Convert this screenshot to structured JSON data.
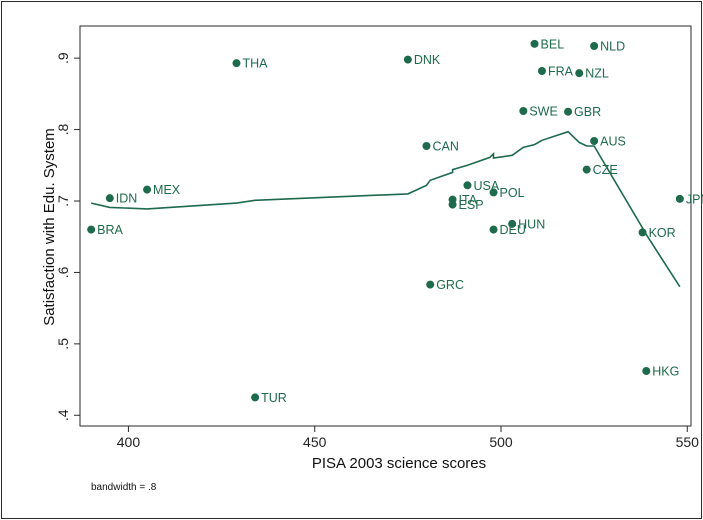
{
  "chart_data": {
    "type": "scatter",
    "xlabel": "PISA 2003 science scores",
    "ylabel": "Satisfaction with Edu. System",
    "note": "bandwidth = .8",
    "xlim": [
      387,
      551
    ],
    "ylim": [
      0.385,
      0.945
    ],
    "xticks": [
      400,
      450,
      500,
      550
    ],
    "yticks": [
      0.4,
      0.5,
      0.6,
      0.7,
      0.8,
      0.9
    ],
    "ytick_labels": [
      ".4",
      ".5",
      ".6",
      ".7",
      ".8",
      ".9"
    ],
    "marker_color": "#1e6a4d",
    "line_color": "#1e6a4d",
    "grid": false,
    "points": [
      {
        "label": "BRA",
        "x": 390,
        "y": 0.66
      },
      {
        "label": "IDN",
        "x": 395,
        "y": 0.704
      },
      {
        "label": "MEX",
        "x": 405,
        "y": 0.716
      },
      {
        "label": "THA",
        "x": 429,
        "y": 0.893
      },
      {
        "label": "TUR",
        "x": 434,
        "y": 0.425
      },
      {
        "label": "DNK",
        "x": 475,
        "y": 0.898
      },
      {
        "label": "CAN",
        "x": 480,
        "y": 0.777
      },
      {
        "label": "GRC",
        "x": 481,
        "y": 0.583
      },
      {
        "label": "ITA",
        "x": 487,
        "y": 0.702
      },
      {
        "label": "ESP",
        "x": 487,
        "y": 0.695
      },
      {
        "label": "USA",
        "x": 491,
        "y": 0.722
      },
      {
        "label": "POL",
        "x": 498,
        "y": 0.712
      },
      {
        "label": "DEU",
        "x": 498,
        "y": 0.66
      },
      {
        "label": "HUN",
        "x": 503,
        "y": 0.668
      },
      {
        "label": "SWE",
        "x": 506,
        "y": 0.826
      },
      {
        "label": "BEL",
        "x": 509,
        "y": 0.92
      },
      {
        "label": "FRA",
        "x": 511,
        "y": 0.882
      },
      {
        "label": "GBR",
        "x": 518,
        "y": 0.825
      },
      {
        "label": "NZL",
        "x": 521,
        "y": 0.879
      },
      {
        "label": "CZE",
        "x": 523,
        "y": 0.744
      },
      {
        "label": "NLD",
        "x": 525,
        "y": 0.917
      },
      {
        "label": "AUS",
        "x": 525,
        "y": 0.784
      },
      {
        "label": "KOR",
        "x": 538,
        "y": 0.656
      },
      {
        "label": "HKG",
        "x": 539,
        "y": 0.462
      },
      {
        "label": "JPN",
        "x": 548,
        "y": 0.703
      }
    ],
    "lowess": [
      {
        "x": 390,
        "y": 0.697
      },
      {
        "x": 395,
        "y": 0.691
      },
      {
        "x": 405,
        "y": 0.689
      },
      {
        "x": 429,
        "y": 0.697
      },
      {
        "x": 434,
        "y": 0.701
      },
      {
        "x": 475,
        "y": 0.71
      },
      {
        "x": 480,
        "y": 0.722
      },
      {
        "x": 481,
        "y": 0.729
      },
      {
        "x": 487,
        "y": 0.74
      },
      {
        "x": 487,
        "y": 0.744
      },
      {
        "x": 491,
        "y": 0.75
      },
      {
        "x": 497,
        "y": 0.761
      },
      {
        "x": 498,
        "y": 0.766
      },
      {
        "x": 498,
        "y": 0.76
      },
      {
        "x": 503,
        "y": 0.764
      },
      {
        "x": 506,
        "y": 0.775
      },
      {
        "x": 509,
        "y": 0.779
      },
      {
        "x": 511,
        "y": 0.785
      },
      {
        "x": 518,
        "y": 0.797
      },
      {
        "x": 521,
        "y": 0.782
      },
      {
        "x": 523,
        "y": 0.777
      },
      {
        "x": 525,
        "y": 0.777
      },
      {
        "x": 538,
        "y": 0.662
      },
      {
        "x": 539,
        "y": 0.653
      },
      {
        "x": 548,
        "y": 0.58
      }
    ]
  }
}
